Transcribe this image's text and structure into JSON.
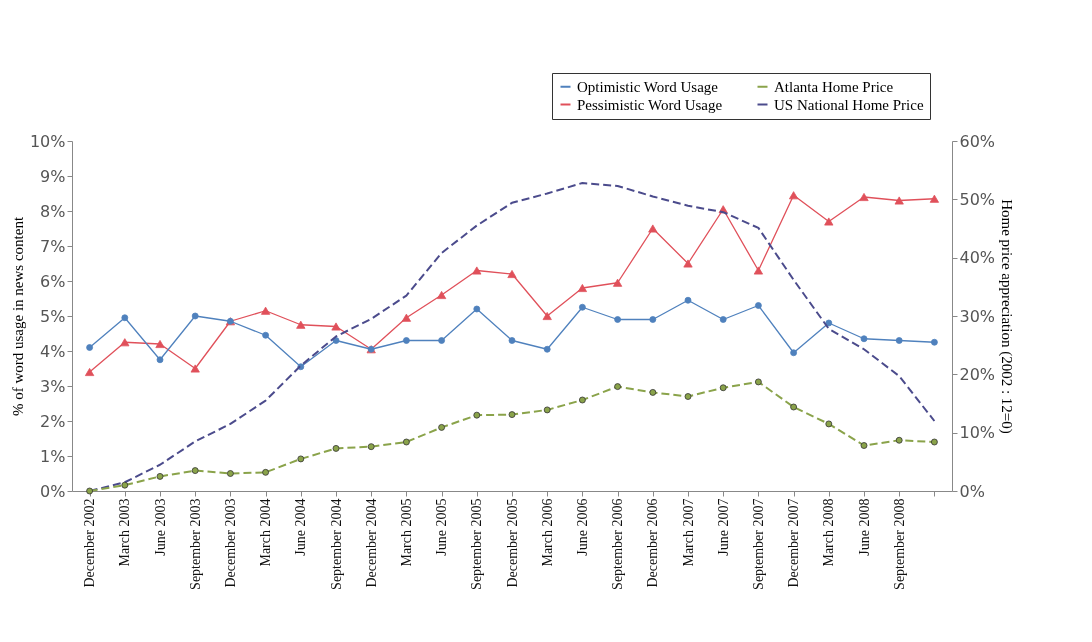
{
  "chart_data": {
    "type": "line",
    "ylabel": "% of word usage in news content",
    "y2label": "Home price appreciation (2002 : 12=0)",
    "categories": [
      "December 2002",
      "March 2003",
      "June 2003",
      "September 2003",
      "December 2003",
      "March 2004",
      "June 2004",
      "September 2004",
      "December 2004",
      "March 2005",
      "June 2005",
      "September 2005",
      "December 2005",
      "March 2006",
      "June 2006",
      "September 2006",
      "December 2006",
      "March 2007",
      "June 2007",
      "September 2007",
      "December 2007",
      "March 2008",
      "June 2008",
      "September 2008",
      null
    ],
    "series": [
      {
        "name": "Optimistic Word Usage",
        "color": "#4f81bd",
        "marker": "circle",
        "line_style": "solid",
        "values": [
          4.1,
          4.95,
          3.75,
          5.0,
          4.85,
          4.45,
          3.55,
          4.3,
          4.05,
          4.3,
          4.3,
          5.2,
          4.3,
          4.05,
          5.25,
          4.9,
          4.9,
          5.45,
          4.9,
          5.3,
          3.95,
          4.8,
          4.35,
          4.3,
          4.25
        ]
      },
      {
        "name": "Pessimistic Word Usage",
        "color": "#e0505a",
        "marker": "triangle",
        "line_style": "solid",
        "values": [
          3.4,
          4.25,
          4.2,
          3.5,
          4.85,
          5.15,
          4.75,
          4.7,
          4.05,
          4.95,
          5.6,
          6.3,
          6.2,
          5.0,
          5.8,
          5.95,
          7.5,
          6.5,
          8.05,
          6.3,
          8.45,
          7.7,
          8.4,
          8.3,
          8.35
        ]
      },
      {
        "name": "Atlanta Home Price",
        "color": "#8aa34a",
        "marker": "circle",
        "line_style": "dashed",
        "axis": "y2",
        "values": [
          0,
          1,
          2.5,
          3.5,
          3,
          3.2,
          5.5,
          7.3,
          7.6,
          8.4,
          10.9,
          13,
          13.1,
          13.9,
          15.6,
          17.9,
          16.9,
          16.2,
          17.7,
          18.7,
          14.4,
          11.5,
          7.8,
          8.7,
          8.4
        ]
      },
      {
        "name": "US National Home Price",
        "color": "#4b4b8c",
        "marker": "none",
        "line_style": "dashed",
        "axis": "y2",
        "values": [
          0,
          1.5,
          4.5,
          8.5,
          11.5,
          15.5,
          21.5,
          26.5,
          29.5,
          33.5,
          40.8,
          45.5,
          49.4,
          51,
          52.8,
          52.3,
          50.5,
          48.9,
          47.8,
          45.1,
          36.2,
          27.8,
          24.3,
          19.7,
          12
        ]
      }
    ],
    "ylim": [
      0,
      10
    ],
    "yticks": [
      {
        "value": 0,
        "label": "0%"
      },
      {
        "value": 1,
        "label": "1%"
      },
      {
        "value": 2,
        "label": "2%"
      },
      {
        "value": 3,
        "label": "3%"
      },
      {
        "value": 4,
        "label": "4%"
      },
      {
        "value": 5,
        "label": "5%"
      },
      {
        "value": 6,
        "label": "6%"
      },
      {
        "value": 7,
        "label": "7%"
      },
      {
        "value": 8,
        "label": "8%"
      },
      {
        "value": 9,
        "label": "9%"
      },
      {
        "value": 10,
        "label": "10%"
      }
    ],
    "y2lim": [
      0,
      60
    ],
    "y2ticks": [
      {
        "value": 0,
        "label": "0%"
      },
      {
        "value": 10,
        "label": "10%"
      },
      {
        "value": 20,
        "label": "20%"
      },
      {
        "value": 30,
        "label": "30%"
      },
      {
        "value": 40,
        "label": "40%"
      },
      {
        "value": 50,
        "label": "50%"
      },
      {
        "value": 60,
        "label": "60%"
      }
    ],
    "grid": false,
    "legend": "top right"
  }
}
